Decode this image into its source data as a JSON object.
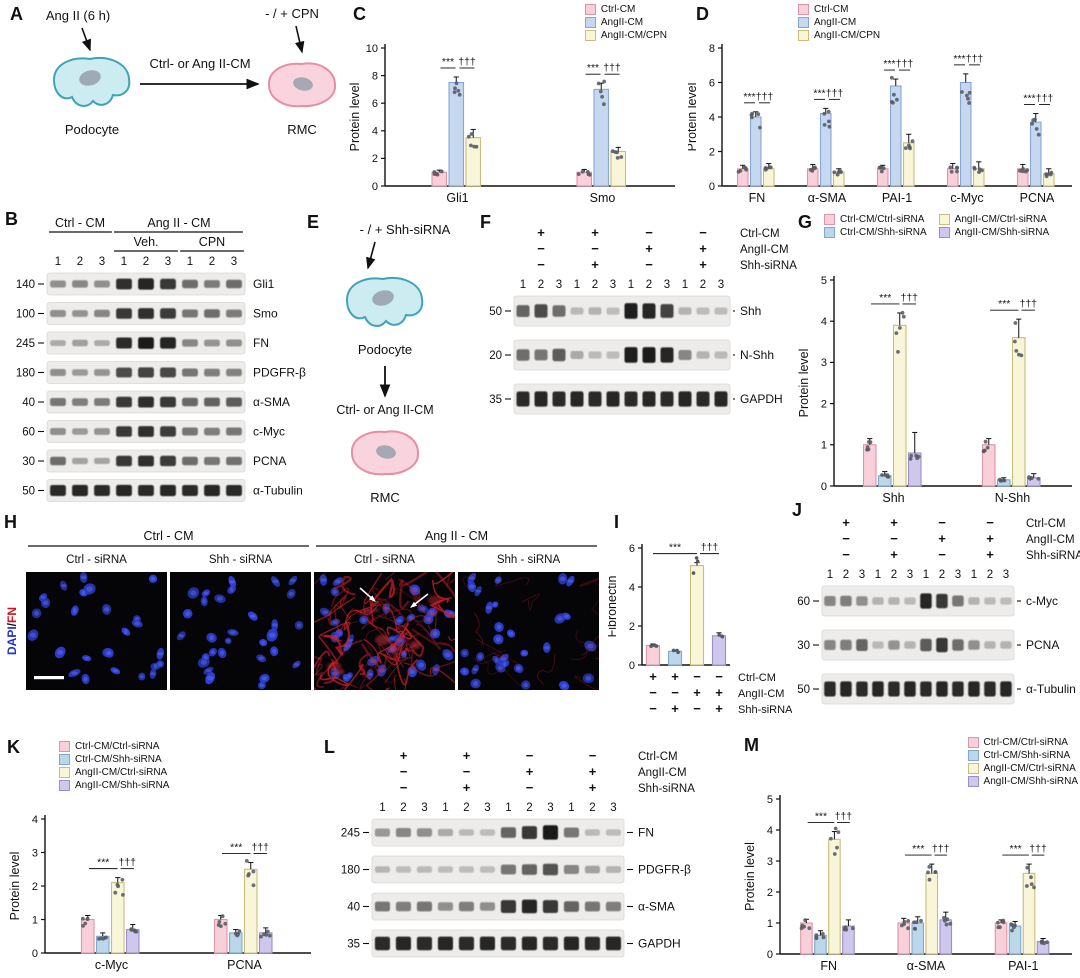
{
  "palette3": [
    {
      "name": "Ctrl-CM",
      "fill": "#f9cfda",
      "stroke": "#dd94a8"
    },
    {
      "name": "AngII-CM",
      "fill": "#c6d7f0",
      "stroke": "#87a6d4"
    },
    {
      "name": "AngII-CM/CPN",
      "fill": "#f9f5d9",
      "stroke": "#c9bd7a"
    }
  ],
  "palette4": [
    {
      "name": "Ctrl-CM/Ctrl-siRNA",
      "fill": "#f9cfda",
      "stroke": "#dd94a8"
    },
    {
      "name": "Ctrl-CM/Shh-siRNA",
      "fill": "#bcd6ea",
      "stroke": "#7fa8cc"
    },
    {
      "name": "AngII-CM/Ctrl-siRNA",
      "fill": "#f9f5d9",
      "stroke": "#c9bd7a"
    },
    {
      "name": "AngII-CM/Shh-siRNA",
      "fill": "#cfc8ec",
      "stroke": "#9a8ecb"
    }
  ],
  "cond_matrix": {
    "rows": [
      {
        "symbols": [
          "+",
          "+",
          "−",
          "−"
        ],
        "label": "Ctrl-CM"
      },
      {
        "symbols": [
          "−",
          "−",
          "+",
          "+"
        ],
        "label": "AngII-CM"
      },
      {
        "symbols": [
          "−",
          "+",
          "−",
          "+"
        ],
        "label": "Shh-siRNA"
      }
    ]
  },
  "lanes12": [
    "1",
    "2",
    "3",
    "1",
    "2",
    "3",
    "1",
    "2",
    "3",
    "1",
    "2",
    "3"
  ],
  "panelA": {
    "label": "A",
    "stimulus": "Ang II (6 h)",
    "cm_label": "Ctrl- or Ang II-CM",
    "cpn_label": "- / + CPN",
    "cell1": "Podocyte",
    "cell2": "RMC"
  },
  "panelB": {
    "label": "B",
    "group1": "Ctrl - CM",
    "group2": "Ang II - CM",
    "sub1": "Veh.",
    "sub2": "CPN",
    "lanes": [
      "1",
      "2",
      "3",
      "1",
      "2",
      "3",
      "1",
      "2",
      "3"
    ],
    "rows": [
      {
        "mw": "140",
        "protein": "Gli1",
        "bands": [
          0.3,
          0.35,
          0.3,
          0.85,
          0.92,
          0.8,
          0.5,
          0.42,
          0.5
        ]
      },
      {
        "mw": "100",
        "protein": "Smo",
        "bands": [
          0.3,
          0.28,
          0.35,
          0.8,
          0.85,
          0.78,
          0.45,
          0.5,
          0.42
        ]
      },
      {
        "mw": "245",
        "protein": "FN",
        "bands": [
          0.15,
          0.22,
          0.15,
          0.88,
          0.97,
          0.92,
          0.35,
          0.28,
          0.3
        ]
      },
      {
        "mw": "180",
        "protein": "PDGFR-β",
        "bands": [
          0.3,
          0.24,
          0.28,
          0.7,
          0.75,
          0.72,
          0.45,
          0.4,
          0.38
        ]
      },
      {
        "mw": "40",
        "protein": "α-SMA",
        "bands": [
          0.45,
          0.4,
          0.42,
          0.8,
          0.86,
          0.8,
          0.52,
          0.56,
          0.6
        ]
      },
      {
        "mw": "60",
        "protein": "c-Myc",
        "bands": [
          0.3,
          0.24,
          0.28,
          0.8,
          0.85,
          0.78,
          0.45,
          0.4,
          0.44
        ]
      },
      {
        "mw": "30",
        "protein": "PCNA",
        "bands": [
          0.5,
          0.2,
          0.18,
          0.8,
          0.85,
          0.78,
          0.5,
          0.45,
          0.48
        ]
      },
      {
        "mw": "50",
        "protein": "α-Tubulin",
        "bands": [
          0.88,
          0.9,
          0.88,
          0.9,
          0.88,
          0.9,
          0.88,
          0.9,
          0.88
        ]
      }
    ]
  },
  "panelC": {
    "label": "C"
  },
  "panelD": {
    "label": "D"
  },
  "panelE": {
    "label": "E",
    "sirna_label": "- / + Shh-siRNA",
    "cell1": "Podocyte",
    "cm_label": "Ctrl- or Ang II-CM",
    "cell2": "RMC"
  },
  "panelF": {
    "label": "F",
    "rows": [
      {
        "mw": "50",
        "protein": "Shh",
        "bands": [
          0.55,
          0.7,
          0.5,
          0.06,
          0.1,
          0.05,
          0.95,
          0.9,
          0.75,
          0.1,
          0.05,
          0.05
        ]
      },
      {
        "mw": "20",
        "protein": "N-Shh",
        "bands": [
          0.5,
          0.45,
          0.6,
          0.15,
          0.06,
          0.05,
          0.95,
          0.96,
          0.9,
          0.35,
          0.1,
          0.06
        ]
      },
      {
        "mw": "35",
        "protein": "GAPDH",
        "bands": [
          0.88,
          0.9,
          0.88,
          0.9,
          0.88,
          0.9,
          0.88,
          0.9,
          0.88,
          0.9,
          0.88,
          0.9
        ]
      }
    ]
  },
  "panelG": {
    "label": "G"
  },
  "panelH": {
    "label": "H",
    "y_dapi": "DAPI",
    "y_sep": "/",
    "y_fn": "FN",
    "group1": "Ctrl - CM",
    "group2": "Ang II - CM",
    "subs": [
      "Ctrl - siRNA",
      "Shh - siRNA",
      "Ctrl - siRNA",
      "Shh - siRNA"
    ]
  },
  "panelI": {
    "label": "I"
  },
  "panelJ": {
    "label": "J",
    "rows": [
      {
        "mw": "60",
        "protein": "c-Myc",
        "bands": [
          0.35,
          0.4,
          0.3,
          0.1,
          0.1,
          0.06,
          0.9,
          0.8,
          0.45,
          0.1,
          0.06,
          0.05
        ]
      },
      {
        "mw": "30",
        "protein": "PCNA",
        "bands": [
          0.35,
          0.4,
          0.55,
          0.06,
          0.28,
          0.1,
          0.6,
          0.8,
          0.5,
          0.3,
          0.1,
          0.1
        ]
      },
      {
        "mw": "50",
        "protein": "α-Tubulin",
        "bands": [
          0.88,
          0.9,
          0.88,
          0.9,
          0.88,
          0.9,
          0.88,
          0.9,
          0.88,
          0.9,
          0.88,
          0.9
        ]
      }
    ]
  },
  "panelK": {
    "label": "K"
  },
  "panelL": {
    "label": "L",
    "rows": [
      {
        "mw": "245",
        "protein": "FN",
        "bands": [
          0.25,
          0.35,
          0.3,
          0.15,
          0.06,
          0.05,
          0.55,
          0.8,
          0.97,
          0.45,
          0.06,
          0.05
        ]
      },
      {
        "mw": "180",
        "protein": "PDGFR-β",
        "bands": [
          0.08,
          0.05,
          0.06,
          0.05,
          0.05,
          0.05,
          0.45,
          0.55,
          0.65,
          0.35,
          0.2,
          0.1
        ]
      },
      {
        "mw": "40",
        "protein": "α-SMA",
        "bands": [
          0.45,
          0.4,
          0.45,
          0.3,
          0.4,
          0.3,
          0.8,
          0.9,
          0.8,
          0.55,
          0.45,
          0.4
        ]
      },
      {
        "mw": "35",
        "protein": "GAPDH",
        "bands": [
          0.88,
          0.9,
          0.88,
          0.9,
          0.88,
          0.9,
          0.88,
          0.9,
          0.88,
          0.9,
          0.88,
          0.9
        ]
      }
    ]
  },
  "panelM": {
    "label": "M"
  },
  "chart_data": [
    {
      "panel": "C",
      "type": "grouped_bar",
      "palette": "palette3",
      "ylabel": "Protein level",
      "ylim": [
        0,
        10
      ],
      "yticks": [
        0,
        2,
        4,
        6,
        8,
        10
      ],
      "categories": [
        "Gli1",
        "Smo"
      ],
      "series": [
        {
          "name": "Ctrl-CM",
          "values": [
            1.0,
            1.0
          ],
          "errors": [
            0.15,
            0.2
          ]
        },
        {
          "name": "AngII-CM",
          "values": [
            7.5,
            7.0
          ],
          "errors": [
            0.4,
            0.45
          ]
        },
        {
          "name": "AngII-CM/CPN",
          "values": [
            3.5,
            2.5
          ],
          "errors": [
            0.6,
            0.3
          ]
        }
      ],
      "sig": [
        [
          "***",
          "†††"
        ],
        [
          "***",
          "†††"
        ]
      ]
    },
    {
      "panel": "D",
      "type": "grouped_bar",
      "palette": "palette3",
      "ylabel": "Protein level",
      "ylim": [
        0,
        8
      ],
      "yticks": [
        0,
        2,
        4,
        6,
        8
      ],
      "categories": [
        "FN",
        "α-SMA",
        "PAI-1",
        "c-Myc",
        "PCNA"
      ],
      "series": [
        {
          "name": "Ctrl-CM",
          "values": [
            1.0,
            1.0,
            1.0,
            1.0,
            1.0
          ],
          "errors": [
            0.2,
            0.25,
            0.2,
            0.3,
            0.25
          ]
        },
        {
          "name": "AngII-CM",
          "values": [
            4.0,
            4.2,
            5.8,
            6.0,
            3.7
          ],
          "errors": [
            0.3,
            0.3,
            0.4,
            0.5,
            0.5
          ]
        },
        {
          "name": "AngII-CM/CPN",
          "values": [
            1.0,
            0.8,
            2.5,
            1.0,
            0.7
          ],
          "errors": [
            0.3,
            0.2,
            0.5,
            0.4,
            0.3
          ]
        }
      ],
      "sig": [
        [
          "***",
          "†††"
        ],
        [
          "***",
          "†††"
        ],
        [
          "***",
          "†††"
        ],
        [
          "***",
          "†††"
        ],
        [
          "***",
          "†††"
        ]
      ]
    },
    {
      "panel": "G",
      "type": "grouped_bar",
      "palette": "palette4",
      "ylabel": "Protein level",
      "ylim": [
        0,
        5
      ],
      "yticks": [
        0,
        1,
        2,
        3,
        4,
        5
      ],
      "categories": [
        "Shh",
        "N-Shh"
      ],
      "series": [
        {
          "name": "Ctrl-CM/Ctrl-siRNA",
          "values": [
            1.0,
            1.0
          ],
          "errors": [
            0.15,
            0.15
          ]
        },
        {
          "name": "Ctrl-CM/Shh-siRNA",
          "values": [
            0.25,
            0.15
          ],
          "errors": [
            0.1,
            0.05
          ]
        },
        {
          "name": "AngII-CM/Ctrl-siRNA",
          "values": [
            3.9,
            3.6
          ],
          "errors": [
            0.3,
            0.45
          ]
        },
        {
          "name": "AngII-CM/Shh-siRNA",
          "values": [
            0.8,
            0.2
          ],
          "errors": [
            0.5,
            0.1
          ]
        }
      ],
      "sig": [
        [
          "***",
          "†††"
        ],
        [
          "***",
          "†††"
        ]
      ]
    },
    {
      "panel": "I",
      "type": "single_bar",
      "palette": "palette4",
      "ylabel": "Fibronectin",
      "ylim": [
        0,
        6
      ],
      "yticks": [
        0,
        2,
        4,
        6
      ],
      "values": [
        1.0,
        0.7,
        5.1,
        1.5
      ],
      "errors": [
        0.08,
        0.06,
        0.15,
        0.15
      ],
      "sig_global": {
        "spans": [
          [
            0,
            2
          ],
          [
            2,
            3
          ]
        ],
        "labels": [
          "***",
          "†††"
        ]
      },
      "matrix": true
    },
    {
      "panel": "K",
      "type": "grouped_bar",
      "palette": "palette4",
      "ylabel": "Protein level",
      "ylim": [
        0,
        4
      ],
      "yticks": [
        0,
        1,
        2,
        3,
        4
      ],
      "categories": [
        "c-Myc",
        "PCNA"
      ],
      "series": [
        {
          "name": "Ctrl-CM/Ctrl-siRNA",
          "values": [
            1.0,
            1.0
          ],
          "errors": [
            0.12,
            0.12
          ]
        },
        {
          "name": "Ctrl-CM/Shh-siRNA",
          "values": [
            0.5,
            0.6
          ],
          "errors": [
            0.1,
            0.1
          ]
        },
        {
          "name": "AngII-CM/Ctrl-siRNA",
          "values": [
            2.1,
            2.5
          ],
          "errors": [
            0.15,
            0.2
          ]
        },
        {
          "name": "AngII-CM/Shh-siRNA",
          "values": [
            0.7,
            0.6
          ],
          "errors": [
            0.15,
            0.15
          ]
        }
      ],
      "sig": [
        [
          "***",
          "†††"
        ],
        [
          "***",
          "†††"
        ]
      ]
    },
    {
      "panel": "M",
      "type": "grouped_bar",
      "palette": "palette4",
      "ylabel": "Protein level",
      "ylim": [
        0,
        5
      ],
      "yticks": [
        0,
        1,
        2,
        3,
        4,
        5
      ],
      "categories": [
        "FN",
        "α-SMA",
        "PAI-1"
      ],
      "series": [
        {
          "name": "Ctrl-CM/Ctrl-siRNA",
          "values": [
            1.0,
            1.0,
            1.0
          ],
          "errors": [
            0.12,
            0.15,
            0.1
          ]
        },
        {
          "name": "Ctrl-CM/Shh-siRNA",
          "values": [
            0.6,
            1.0,
            0.9
          ],
          "errors": [
            0.15,
            0.2,
            0.15
          ]
        },
        {
          "name": "AngII-CM/Ctrl-siRNA",
          "values": [
            3.7,
            2.6,
            2.6
          ],
          "errors": [
            0.25,
            0.3,
            0.3
          ]
        },
        {
          "name": "AngII-CM/Shh-siRNA",
          "values": [
            0.9,
            1.1,
            0.4
          ],
          "errors": [
            0.2,
            0.25,
            0.1
          ]
        }
      ],
      "sig": [
        [
          "***",
          "†††"
        ],
        [
          "***",
          "†††"
        ],
        [
          "***",
          "†††"
        ]
      ]
    }
  ]
}
